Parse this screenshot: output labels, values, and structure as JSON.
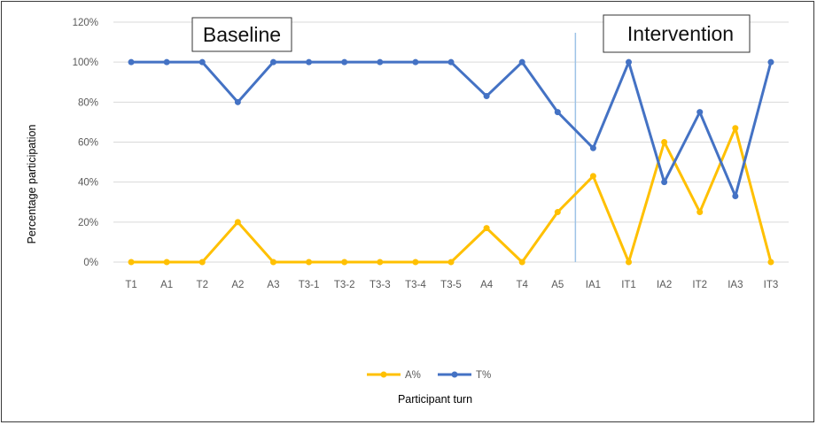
{
  "chart_data": {
    "type": "line",
    "categories": [
      "T1",
      "A1",
      "T2",
      "A2",
      "A3",
      "T3-1",
      "T3-2",
      "T3-3",
      "T3-4",
      "T3-5",
      "A4",
      "T4",
      "A5",
      "IA1",
      "IT1",
      "IA2",
      "IT2",
      "IA3",
      "IT3"
    ],
    "series": [
      {
        "name": "A%",
        "color": "#FFC000",
        "values": [
          0,
          0,
          0,
          20,
          0,
          0,
          0,
          0,
          0,
          0,
          17,
          0,
          25,
          43,
          0,
          60,
          25,
          67,
          0
        ]
      },
      {
        "name": "T%",
        "color": "#4472C4",
        "values": [
          100,
          100,
          100,
          80,
          100,
          100,
          100,
          100,
          100,
          100,
          83,
          100,
          75,
          57,
          100,
          40,
          75,
          33,
          100
        ]
      }
    ],
    "yticks": [
      "0%",
      "20%",
      "40%",
      "60%",
      "80%",
      "100%",
      "120%"
    ],
    "ylim": [
      0,
      120
    ],
    "xlabel": "Participant turn",
    "ylabel": "Percentage participation",
    "grid": true,
    "legend_position": "bottom",
    "annotations": {
      "baseline": "Baseline",
      "intervention": "Intervention",
      "phase_divider_after": "A5"
    },
    "divider_color": "#9DC3E6",
    "grid_color": "#D9D9D9"
  }
}
